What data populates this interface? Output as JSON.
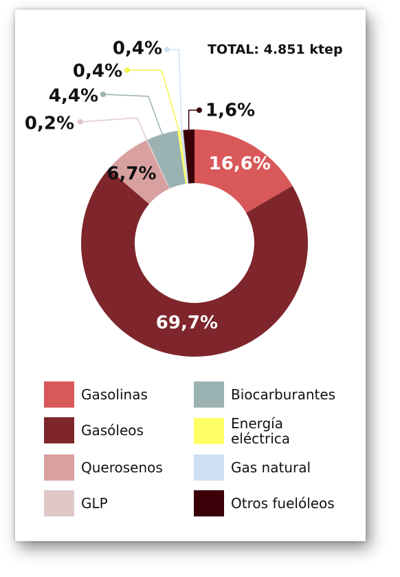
{
  "chart_data": {
    "type": "pie",
    "donut": true,
    "total_label": "TOTAL: 4.851 ktep",
    "categories": [
      "Gasolinas",
      "Gasóleos",
      "Querosenos",
      "GLP",
      "Biocarburantes",
      "Energía eléctrica",
      "Gas natural",
      "Otros fuelóleos"
    ],
    "values": [
      16.6,
      69.7,
      6.7,
      0.2,
      4.4,
      0.4,
      0.4,
      1.6
    ],
    "value_labels": [
      "16,6%",
      "69,7%",
      "6,7%",
      "0,2%",
      "4,4%",
      "0,4%",
      "0,4%",
      "1,6%"
    ],
    "colors": [
      "#D9585A",
      "#7E262B",
      "#D9A0A0",
      "#E0C8C8",
      "#9BB2B2",
      "#FFFF66",
      "#CFE0F2",
      "#3A0008"
    ],
    "legend": [
      {
        "label": "Gasolinas",
        "color": "#D9585A"
      },
      {
        "label": "Gasóleos",
        "color": "#7E262B"
      },
      {
        "label": "Querosenos",
        "color": "#D9A0A0"
      },
      {
        "label": "GLP",
        "color": "#E0C8C8"
      },
      {
        "label": "Biocarburantes",
        "color": "#9BB2B2"
      },
      {
        "label": "Energía eléctrica",
        "color": "#FFFF66"
      },
      {
        "label": "Gas natural",
        "color": "#CFE0F2"
      },
      {
        "label": "Otros fuelóleos",
        "color": "#3A0008"
      }
    ]
  }
}
